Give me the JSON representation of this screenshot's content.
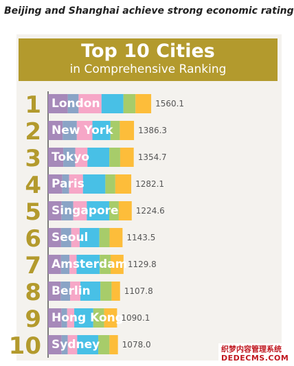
{
  "headline": "Beijing and Shanghai achieve strong economic ratings",
  "colors": {
    "banner": "#b39a2d",
    "rank_text": "#b39a2d",
    "segments": [
      "#a689b9",
      "#8aa4c6",
      "#f6a7c7",
      "#48c0e6",
      "#a7cc6a",
      "#fdbd3a"
    ]
  },
  "chart_data": {
    "type": "bar",
    "orientation": "horizontal",
    "stacked": true,
    "title": "Top 10 Cities",
    "subtitle": "in Comprehensive Ranking",
    "ranks": [
      "1",
      "2",
      "3",
      "4",
      "5",
      "6",
      "7",
      "8",
      "9",
      "10"
    ],
    "categories": [
      "London",
      "New York",
      "Tokyo",
      "Paris",
      "Singapore",
      "Seoul",
      "Amsterdam",
      "Berlin",
      "Hong Kong",
      "Sydney"
    ],
    "values": [
      1560.1,
      1386.3,
      1354.7,
      1282.1,
      1224.6,
      1143.5,
      1129.8,
      1107.8,
      1090.1,
      1078.0
    ],
    "value_labels": [
      "1560.1",
      "1386.3",
      "1354.7",
      "1282.1",
      "1224.6",
      "1143.5",
      "1129.8",
      "1107.8",
      "1090.1",
      "1078.0"
    ],
    "segments": [
      [
        158.0,
        87.0,
        184.0,
        176.0,
        97.0,
        126.0
      ],
      [
        117.0,
        114.0,
        125.0,
        145.0,
        75.0,
        114.0
      ],
      [
        122.0,
        96.0,
        98.0,
        176.0,
        87.0,
        109.0
      ],
      [
        114.0,
        55.0,
        111.0,
        180.0,
        80.0,
        128.0
      ],
      [
        109.0,
        93.0,
        109.0,
        180.0,
        77.0,
        104.0
      ],
      [
        104.0,
        82.0,
        68.0,
        158.0,
        82.0,
        104.0
      ],
      [
        104.0,
        68.0,
        57.0,
        186.0,
        87.0,
        104.0
      ],
      [
        101.0,
        76.0,
        82.0,
        161.0,
        90.0,
        68.0
      ],
      [
        109.0,
        44.0,
        57.0,
        153.0,
        87.0,
        104.0
      ],
      [
        109.0,
        49.0,
        76.0,
        169.0,
        90.0,
        68.0
      ]
    ],
    "xlim": [
      0,
      1600
    ]
  },
  "watermark": {
    "line1": "织梦内容管理系统",
    "line2": "DEDECMS.COM"
  }
}
